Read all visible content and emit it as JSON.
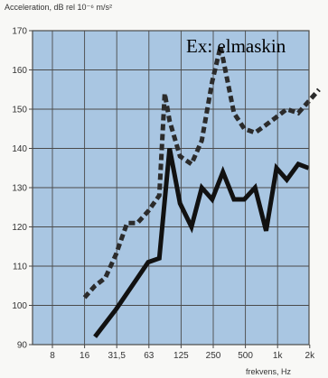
{
  "chart_data": {
    "type": "line",
    "title": "Acceleration, dB rel 10⁻⁶ m/s²",
    "xlabel": "frekvens, Hz",
    "ylabel": "",
    "annotation": "Ex: elmaskin",
    "ylim": [
      90,
      170
    ],
    "yticks": [
      90,
      100,
      110,
      120,
      130,
      140,
      150,
      160,
      170
    ],
    "xticks": [
      "8",
      "16",
      "31,5",
      "63",
      "125",
      "250",
      "500",
      "1k",
      "2k"
    ],
    "grid": true,
    "series": [
      {
        "style": "dashed",
        "color": "#2b2b2b",
        "points": [
          [
            16,
            102
          ],
          [
            20,
            105
          ],
          [
            25,
            107
          ],
          [
            31.5,
            113
          ],
          [
            40,
            121
          ],
          [
            50,
            121
          ],
          [
            63,
            124
          ],
          [
            80,
            128
          ],
          [
            90,
            154
          ],
          [
            100,
            147
          ],
          [
            125,
            138
          ],
          [
            160,
            136
          ],
          [
            200,
            142
          ],
          [
            250,
            157
          ],
          [
            300,
            166
          ],
          [
            400,
            149
          ],
          [
            500,
            145
          ],
          [
            630,
            144
          ],
          [
            800,
            146
          ],
          [
            1000,
            148
          ],
          [
            1250,
            150
          ],
          [
            1600,
            149
          ],
          [
            2000,
            152
          ],
          [
            2500,
            155
          ]
        ]
      },
      {
        "style": "solid",
        "color": "#111111",
        "points": [
          [
            20,
            92
          ],
          [
            31.5,
            99
          ],
          [
            50,
            107
          ],
          [
            63,
            111
          ],
          [
            80,
            112
          ],
          [
            100,
            140
          ],
          [
            125,
            126
          ],
          [
            160,
            120
          ],
          [
            200,
            130
          ],
          [
            250,
            127
          ],
          [
            315,
            134
          ],
          [
            400,
            127
          ],
          [
            500,
            127
          ],
          [
            630,
            130
          ],
          [
            800,
            119
          ],
          [
            1000,
            135
          ],
          [
            1250,
            132
          ],
          [
            1600,
            136
          ],
          [
            2000,
            135
          ]
        ]
      }
    ]
  }
}
